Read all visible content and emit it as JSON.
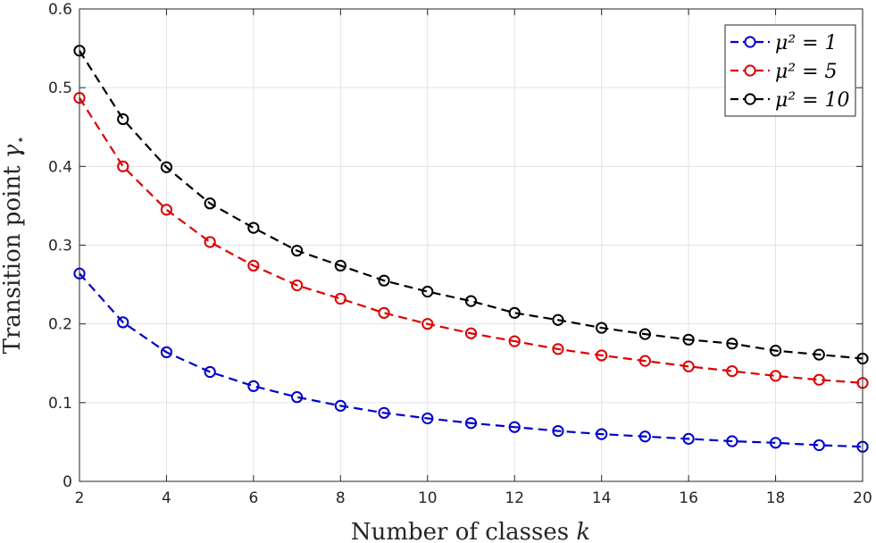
{
  "chart_data": {
    "type": "line",
    "title": "",
    "xlabel": "Number of classes k",
    "ylabel": "Transition point γ⋆",
    "x": [
      2,
      3,
      4,
      5,
      6,
      7,
      8,
      9,
      10,
      11,
      12,
      13,
      14,
      15,
      16,
      17,
      18,
      19,
      20
    ],
    "xlim": [
      2,
      20
    ],
    "ylim": [
      0,
      0.6
    ],
    "xticks": [
      2,
      4,
      6,
      8,
      10,
      12,
      14,
      16,
      18,
      20
    ],
    "yticks": [
      0,
      0.1,
      0.2,
      0.3,
      0.4,
      0.5,
      0.6
    ],
    "xtick_labels": [
      "2",
      "4",
      "6",
      "8",
      "10",
      "12",
      "14",
      "16",
      "18",
      "20"
    ],
    "ytick_labels": [
      "0",
      "0.1",
      "0.2",
      "0.3",
      "0.4",
      "0.5",
      "0.6"
    ],
    "grid": true,
    "legend_position": "top-right",
    "series": [
      {
        "name": "μ² = 1",
        "color": "#0000cc",
        "values": [
          0.264,
          0.202,
          0.164,
          0.139,
          0.121,
          0.107,
          0.096,
          0.087,
          0.08,
          0.074,
          0.069,
          0.064,
          0.06,
          0.057,
          0.054,
          0.051,
          0.049,
          0.046,
          0.044
        ]
      },
      {
        "name": "μ² = 5",
        "color": "#dd0000",
        "values": [
          0.487,
          0.4,
          0.345,
          0.304,
          0.274,
          0.249,
          0.232,
          0.214,
          0.2,
          0.188,
          0.178,
          0.168,
          0.16,
          0.153,
          0.146,
          0.14,
          0.134,
          0.129,
          0.125
        ]
      },
      {
        "name": "μ² = 10",
        "color": "#000000",
        "values": [
          0.547,
          0.46,
          0.399,
          0.353,
          0.322,
          0.293,
          0.274,
          0.255,
          0.241,
          0.229,
          0.214,
          0.205,
          0.195,
          0.187,
          0.18,
          0.175,
          0.166,
          0.161,
          0.156
        ]
      }
    ]
  }
}
